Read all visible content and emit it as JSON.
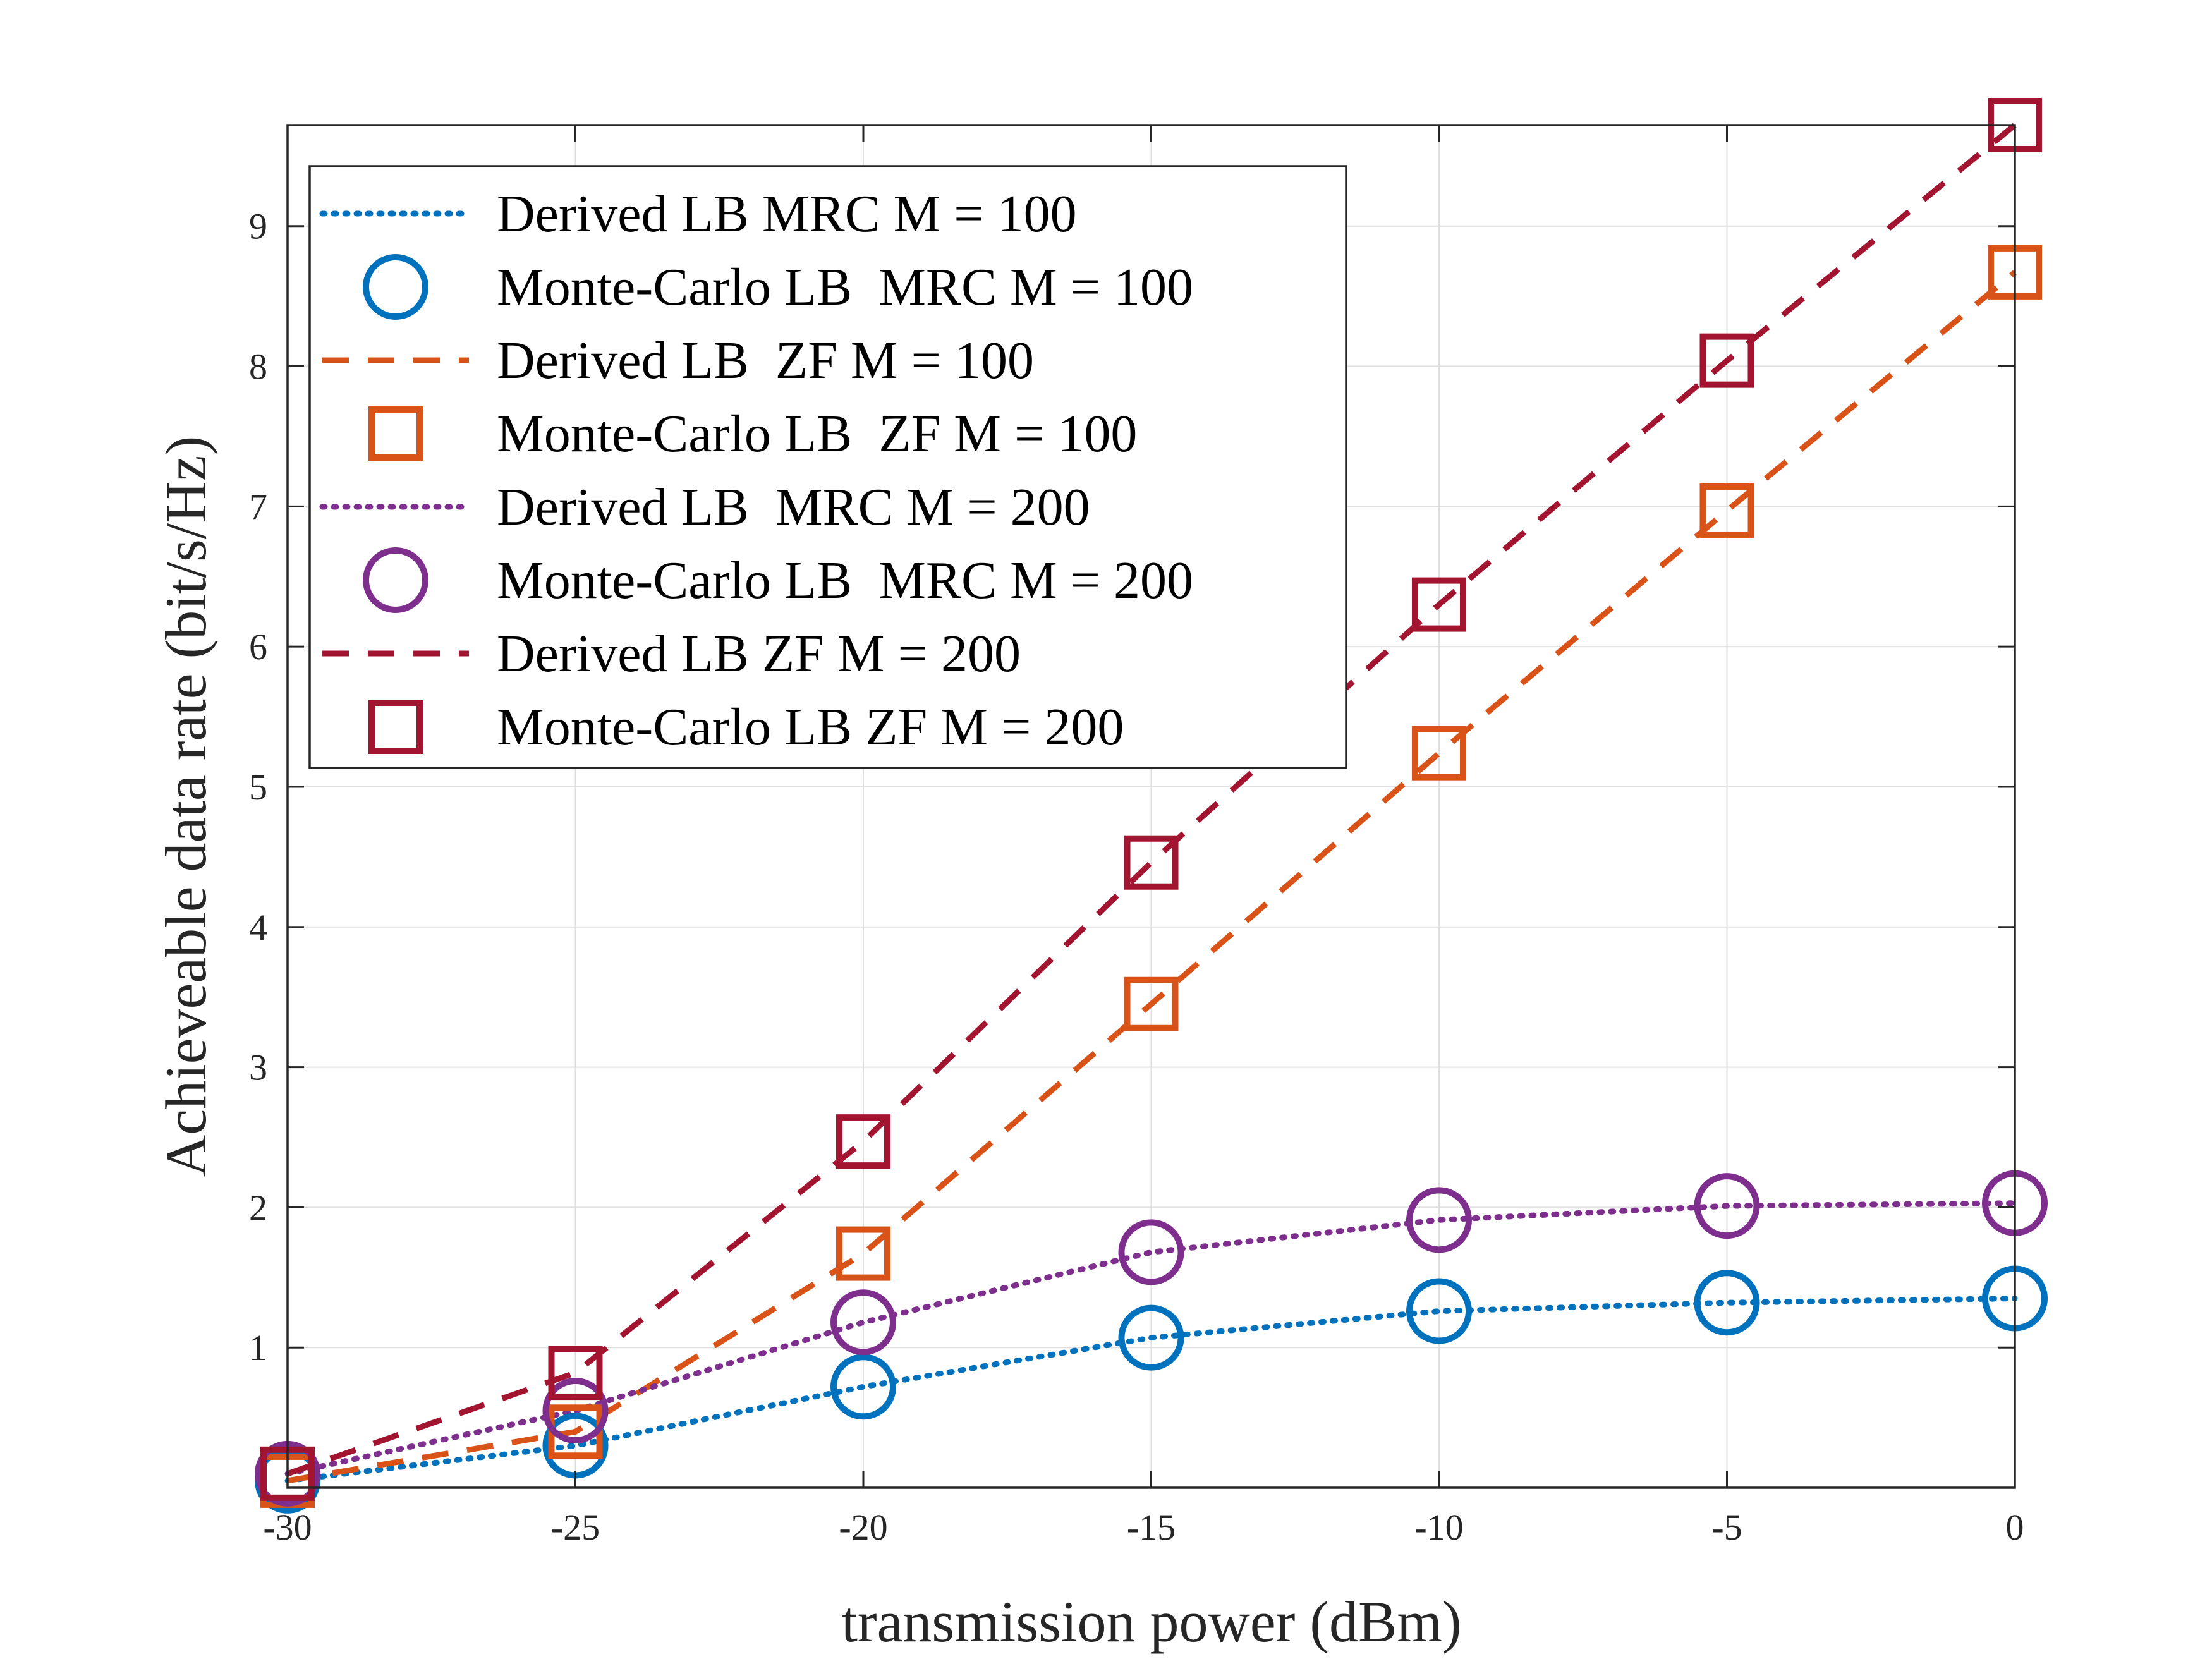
{
  "chart_data": {
    "type": "line",
    "xlabel": "transmission power (dBm)",
    "ylabel": "Achieveable data rate (bit/s/Hz)",
    "xlim": [
      -30,
      0
    ],
    "ylim": [
      0,
      9.72
    ],
    "xticks": [
      -30,
      -25,
      -20,
      -15,
      -10,
      -5,
      0
    ],
    "xtick_labels": [
      "-30",
      "-25",
      "-20",
      "-15",
      "-10",
      "-5",
      "0"
    ],
    "yticks": [
      1,
      2,
      3,
      4,
      5,
      6,
      7,
      8,
      9
    ],
    "ytick_labels": [
      "1",
      "2",
      "3",
      "4",
      "5",
      "6",
      "7",
      "8",
      "9"
    ],
    "grid": true,
    "legend_position": "top-left",
    "x": [
      -30,
      -25,
      -20,
      -15,
      -10,
      -5,
      0
    ],
    "series": [
      {
        "name": "Derived LB MRC M = 100",
        "style": "dotted",
        "marker": "none",
        "color": "#0072BD",
        "values": [
          0.05,
          0.3,
          0.72,
          1.07,
          1.26,
          1.32,
          1.35
        ]
      },
      {
        "name": "Monte-Carlo LB  MRC M = 100",
        "style": "none",
        "marker": "circle",
        "color": "#0072BD",
        "values": [
          0.05,
          0.3,
          0.72,
          1.07,
          1.26,
          1.32,
          1.35
        ]
      },
      {
        "name": "Derived LB  ZF M = 100",
        "style": "dashed",
        "marker": "none",
        "color": "#D95319",
        "values": [
          0.05,
          0.4,
          1.67,
          3.45,
          5.24,
          6.97,
          8.67
        ]
      },
      {
        "name": "Monte-Carlo LB  ZF M = 100",
        "style": "none",
        "marker": "square",
        "color": "#D95319",
        "values": [
          0.05,
          0.4,
          1.67,
          3.45,
          5.24,
          6.97,
          8.67
        ]
      },
      {
        "name": "Derived LB  MRC M = 200",
        "style": "dotted",
        "marker": "none",
        "color": "#7E2F8E",
        "values": [
          0.1,
          0.55,
          1.18,
          1.68,
          1.91,
          2.01,
          2.03
        ]
      },
      {
        "name": "Monte-Carlo LB  MRC M = 200",
        "style": "none",
        "marker": "circle",
        "color": "#7E2F8E",
        "values": [
          0.1,
          0.55,
          1.18,
          1.68,
          1.91,
          2.01,
          2.03
        ]
      },
      {
        "name": "Derived LB ZF M = 200",
        "style": "dashed",
        "marker": "none",
        "color": "#A2142F",
        "values": [
          0.1,
          0.82,
          2.47,
          4.46,
          6.3,
          8.04,
          9.72
        ]
      },
      {
        "name": "Monte-Carlo LB ZF M = 200",
        "style": "none",
        "marker": "square",
        "color": "#A2142F",
        "values": [
          0.1,
          0.82,
          2.47,
          4.46,
          6.3,
          8.04,
          9.72
        ]
      }
    ]
  }
}
